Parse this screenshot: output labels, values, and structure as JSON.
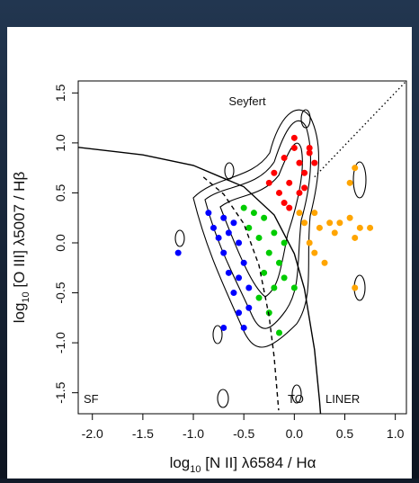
{
  "chart_data": {
    "type": "scatter",
    "xlabel": {
      "prefix": "log",
      "sub": "10",
      "rest": " [N II] λ6584 / Hα"
    },
    "ylabel": {
      "prefix": "log",
      "sub": "10",
      "rest": " [O III] λ5007 / Hβ"
    },
    "annotations": [
      "Seyfert",
      "SF",
      "TO",
      "LINER"
    ],
    "xlim": [
      -2.14,
      1.11
    ],
    "ylim": [
      -1.71,
      1.62
    ],
    "xticks": [
      {
        "value": -2,
        "label": "-2.0"
      },
      -1.5,
      {
        "value": -1,
        "label": "-1.0"
      },
      -0.5,
      {
        "value": 0,
        "label": "0.0"
      },
      0.5,
      {
        "value": 1,
        "label": "1.0"
      }
    ],
    "yticks": [
      -1.5,
      {
        "value": -1,
        "label": "-1.0"
      },
      -0.5,
      {
        "value": 0,
        "label": "0.0"
      },
      0.5,
      {
        "value": 1,
        "label": "1.0"
      },
      1.5
    ],
    "series": [
      {
        "color": "#0000ff",
        "x": [
          -0.85,
          -0.8,
          -0.75,
          -0.7,
          -0.65,
          -0.6,
          -0.55,
          -0.5,
          -0.6,
          -0.55,
          -0.5,
          -0.45,
          -0.7,
          -0.65,
          -0.45,
          -0.55,
          -1.15,
          -0.7
        ],
        "y": [
          0.3,
          0.15,
          0.05,
          -0.1,
          -0.3,
          -0.5,
          -0.7,
          -0.85,
          0.2,
          0.0,
          -0.2,
          -0.45,
          0.25,
          0.1,
          -0.65,
          -0.35,
          -0.1,
          -0.85
        ]
      },
      {
        "color": "#00cc00",
        "x": [
          -0.5,
          -0.4,
          -0.3,
          -0.2,
          -0.35,
          -0.25,
          -0.15,
          -0.3,
          -0.2,
          -0.1,
          -0.35,
          -0.25,
          -0.45,
          -0.1,
          0.0,
          -0.15
        ],
        "y": [
          0.35,
          0.3,
          0.25,
          0.1,
          0.05,
          -0.1,
          -0.2,
          -0.3,
          -0.45,
          -0.35,
          -0.55,
          -0.7,
          0.15,
          0.0,
          -0.45,
          -0.9
        ]
      },
      {
        "color": "#ff0000",
        "x": [
          -0.2,
          -0.1,
          0.0,
          0.05,
          -0.05,
          0.1,
          0.15,
          -0.15,
          0.0,
          0.1,
          0.2,
          -0.25,
          0.15,
          -0.05,
          0.05,
          -0.1
        ],
        "y": [
          0.7,
          0.85,
          0.95,
          0.8,
          0.6,
          0.7,
          0.9,
          0.5,
          1.05,
          0.55,
          0.8,
          0.6,
          0.95,
          0.35,
          0.5,
          0.4
        ]
      },
      {
        "color": "#ffa500",
        "x": [
          0.05,
          0.1,
          0.15,
          0.2,
          0.25,
          0.3,
          0.35,
          0.45,
          0.55,
          0.6,
          0.65,
          0.4,
          0.55,
          0.6,
          0.75,
          0.6,
          0.2
        ],
        "y": [
          0.3,
          0.2,
          0.0,
          0.3,
          0.15,
          -0.2,
          0.2,
          0.2,
          0.25,
          0.05,
          0.15,
          0.1,
          0.6,
          0.75,
          0.15,
          -0.45,
          -0.1
        ]
      }
    ],
    "lines": [
      {
        "style": "solid",
        "x": [
          -2.14,
          -1.5,
          -1.0,
          -0.5,
          -0.2,
          0.0,
          0.1,
          0.2,
          0.25,
          0.26
        ],
        "y": [
          0.956,
          0.88,
          0.775,
          0.561,
          0.28,
          -0.108,
          -0.459,
          -1.069,
          -1.583,
          -1.715
        ]
      },
      {
        "style": "dashed",
        "x": [
          -0.9,
          -0.7,
          -0.5,
          -0.35,
          -0.25,
          -0.2,
          -0.155
        ],
        "y": [
          0.658,
          0.487,
          0.191,
          -0.225,
          -0.733,
          -1.14,
          -1.676
        ]
      },
      {
        "style": "dotted",
        "x": [
          0.2,
          1.11
        ],
        "y": [
          0.66,
          1.62
        ]
      }
    ]
  }
}
